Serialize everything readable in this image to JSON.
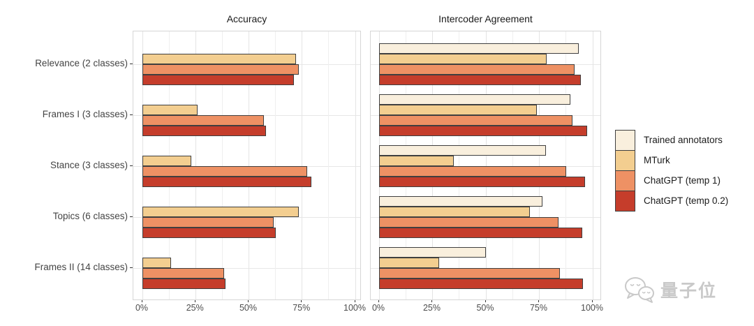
{
  "watermark": {
    "text": "量子位",
    "icon": "wechat-chat-bubbles-icon"
  },
  "colors": {
    "bar_border": "#3f3f3f",
    "panel_border": "#d6d6d6",
    "grid_major": "#e4e4e4",
    "grid_minor": "#efefef",
    "axis_text": "#4d4d4d"
  },
  "chart_data": {
    "type": "bar",
    "orientation": "horizontal",
    "grid": true,
    "xlim": [
      0,
      100
    ],
    "x_tick_values": [
      0,
      25,
      50,
      75,
      100
    ],
    "x_tick_labels": [
      "0%",
      "25%",
      "50%",
      "75%",
      "100%"
    ],
    "x_minor_step": 12.5,
    "categories": [
      "Relevance (2 classes)",
      "Frames I (3 classes)",
      "Stance (3 classes)",
      "Topics (6 classes)",
      "Frames II (14 classes)"
    ],
    "legend_position": "right",
    "legend": [
      {
        "label": "Trained annotators",
        "color": "#f9efdd"
      },
      {
        "label": "MTurk",
        "color": "#f3ce90"
      },
      {
        "label": "ChatGPT (temp 1)",
        "color": "#ee9164"
      },
      {
        "label": "ChatGPT (temp 0.2)",
        "color": "#c53d2b"
      }
    ],
    "panels": [
      {
        "title": "Accuracy",
        "series": [
          {
            "name": "Trained annotators",
            "values": [
              null,
              null,
              null,
              null,
              null
            ]
          },
          {
            "name": "MTurk",
            "values": [
              72,
              26,
              23,
              73.5,
              13.5
            ]
          },
          {
            "name": "ChatGPT (temp 1)",
            "values": [
              73.5,
              57,
              77.5,
              61.5,
              38.5
            ]
          },
          {
            "name": "ChatGPT (temp 0.2)",
            "values": [
              71,
              58,
              79.5,
              62.5,
              39
            ]
          }
        ]
      },
      {
        "title": "Intercoder Agreement",
        "series": [
          {
            "name": "Trained annotators",
            "values": [
              93.5,
              89.5,
              78,
              76.5,
              50
            ]
          },
          {
            "name": "MTurk",
            "values": [
              78.5,
              74,
              35,
              70.5,
              28
            ]
          },
          {
            "name": "ChatGPT (temp 1)",
            "values": [
              91.5,
              90.5,
              87.5,
              84,
              84.5
            ]
          },
          {
            "name": "ChatGPT (temp 0.2)",
            "values": [
              94.5,
              97.5,
              96.5,
              95,
              95.5
            ]
          }
        ]
      }
    ]
  }
}
